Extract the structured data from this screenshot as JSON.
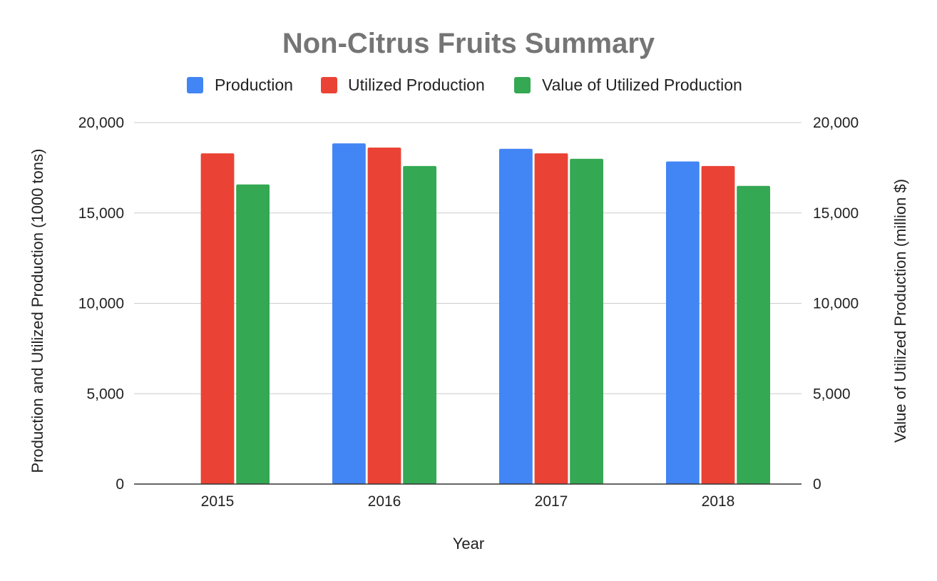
{
  "chart_data": {
    "type": "bar",
    "title": "Non-Citrus Fruits Summary",
    "xlabel": "Year",
    "ylabel": "Production and Utilized Production (1000 tons)",
    "y2label": "Value of Utilized Production (million $)",
    "categories": [
      "2015",
      "2016",
      "2017",
      "2018"
    ],
    "ylim": [
      0,
      20000
    ],
    "y2lim": [
      0,
      20000
    ],
    "yticks": [
      "0",
      "5,000",
      "10,000",
      "15,000",
      "20,000"
    ],
    "y2ticks": [
      "0",
      "5,000",
      "10,000",
      "15,000",
      "20,000"
    ],
    "grid": true,
    "legend_position": "top",
    "series": [
      {
        "name": "Production",
        "color": "#4285f4",
        "axis": "left",
        "values": [
          null,
          18850,
          18550,
          17850
        ]
      },
      {
        "name": "Utilized Production",
        "color": "#ea4335",
        "axis": "left",
        "values": [
          18300,
          18620,
          18300,
          17600
        ]
      },
      {
        "name": "Value of Utilized Production",
        "color": "#34a853",
        "axis": "right",
        "values": [
          16580,
          17600,
          18000,
          16500
        ]
      }
    ]
  }
}
